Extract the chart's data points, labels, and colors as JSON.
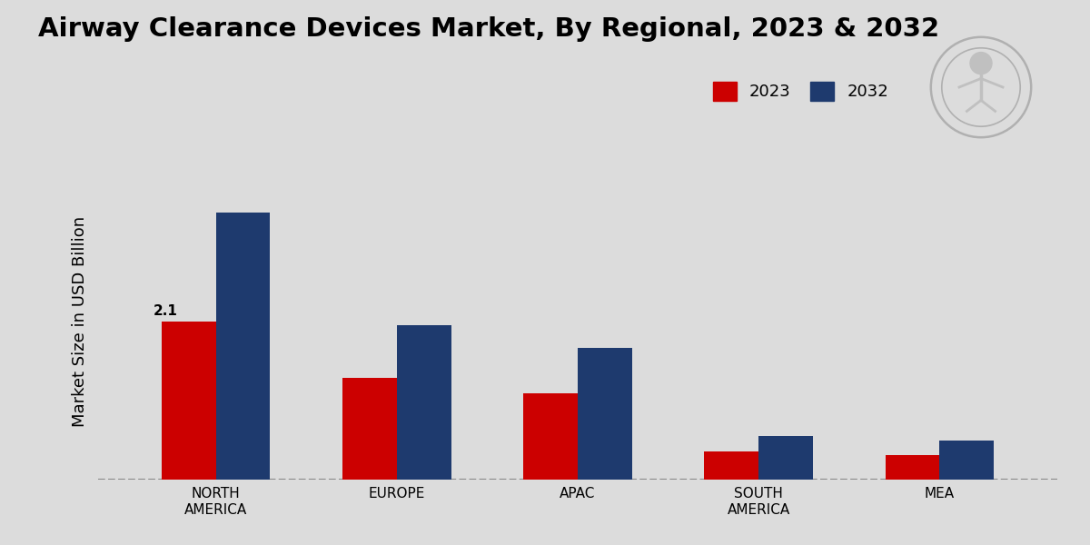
{
  "title": "Airway Clearance Devices Market, By Regional, 2023 & 2032",
  "ylabel": "Market Size in USD Billion",
  "categories": [
    "NORTH\nAMERICA",
    "EUROPE",
    "APAC",
    "SOUTH\nAMERICA",
    "MEA"
  ],
  "values_2023": [
    2.1,
    1.35,
    1.15,
    0.38,
    0.32
  ],
  "values_2032": [
    3.55,
    2.05,
    1.75,
    0.58,
    0.52
  ],
  "color_2023": "#cc0000",
  "color_2032": "#1e3a6e",
  "annotation_text": "2.1",
  "background_color": "#dcdcdc",
  "legend_labels": [
    "2023",
    "2032"
  ],
  "bar_width": 0.3,
  "ylim": [
    0,
    4.2
  ],
  "title_fontsize": 21,
  "ylabel_fontsize": 13,
  "tick_fontsize": 11,
  "legend_fontsize": 13
}
